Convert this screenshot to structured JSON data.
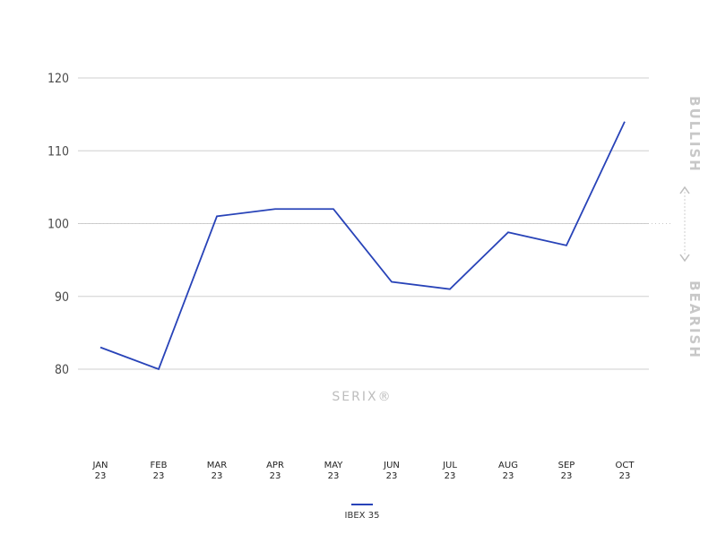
{
  "chart_data": {
    "type": "line",
    "categories": [
      [
        "JAN",
        "23"
      ],
      [
        "FEB",
        "23"
      ],
      [
        "MAR",
        "23"
      ],
      [
        "APR",
        "23"
      ],
      [
        "MAY",
        "23"
      ],
      [
        "JUN",
        "23"
      ],
      [
        "JUL",
        "23"
      ],
      [
        "AUG",
        "23"
      ],
      [
        "SEP",
        "23"
      ],
      [
        "OCT",
        "23"
      ]
    ],
    "series": [
      {
        "name": "IBEX 35",
        "color": "#2843b8",
        "values": [
          83,
          80,
          101,
          102,
          102,
          92,
          91,
          98.8,
          97,
          114
        ]
      }
    ],
    "y_ticks": [
      80,
      90,
      100,
      110,
      120
    ],
    "ylim": [
      80,
      120
    ],
    "reference_line": 100,
    "grid": true,
    "legend_position": "bottom-center",
    "side_labels": {
      "upper": "BULLISH",
      "lower": "BEARISH"
    },
    "watermark": "SERIX®"
  }
}
